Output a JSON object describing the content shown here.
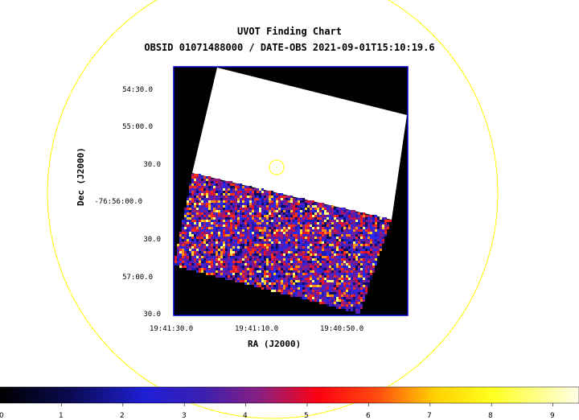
{
  "title": "UVOT Finding Chart",
  "subtitle": "OBSID 01071488000 / DATE-OBS 2021-09-01T15:10:19.6",
  "axes": {
    "xlabel": "RA (J2000)",
    "ylabel": "Dec (J2000)",
    "x_ticks": [
      "19:41:30.0",
      "19:41:10.0",
      "19:40:50.0"
    ],
    "y_ticks": [
      "54:30.0",
      "55:00.0",
      "30.0",
      "-76:56:00.0",
      "30.0",
      "57:00.0",
      "30.0"
    ]
  },
  "colorbar": {
    "colormap": "heat",
    "ticks": [
      "0",
      "1",
      "2",
      "3",
      "4",
      "5",
      "6",
      "7",
      "8",
      "9"
    ]
  },
  "colors": {
    "circle": "#ffff00",
    "frame": "#0000cc",
    "marker": "#ffff00"
  }
}
